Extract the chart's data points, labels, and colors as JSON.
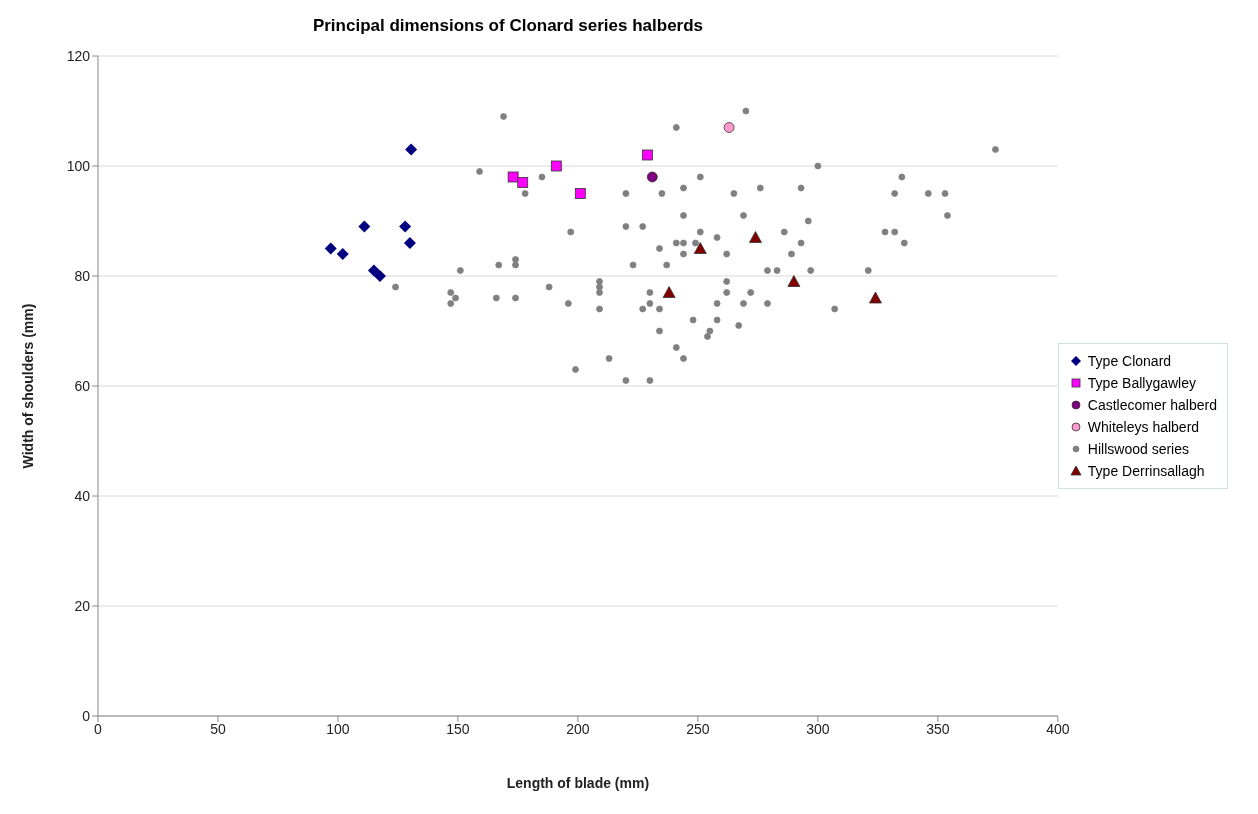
{
  "chart_data": {
    "type": "scatter",
    "title": "Principal dimensions of Clonard series halberds",
    "xlabel": "Length of blade (mm)",
    "ylabel": "Width of shoulders (mm)",
    "xlim": [
      0,
      400
    ],
    "xticks": [
      0,
      50,
      100,
      150,
      200,
      250,
      300,
      350,
      400
    ],
    "ylim": [
      0,
      120
    ],
    "yticks": [
      0,
      20,
      40,
      60,
      80,
      100,
      120
    ],
    "grid": "y",
    "legend": "right",
    "series": [
      {
        "name": "Type Clonard",
        "color": "#000080",
        "marker": "diamond",
        "x": [
          130.5,
          111,
          128,
          130,
          97,
          102,
          115,
          117.5
        ],
        "values": [
          103,
          89,
          89,
          86,
          85,
          84,
          81,
          80
        ]
      },
      {
        "name": "Type Ballygawley",
        "color": "#ff00ff",
        "marker": "square",
        "x": [
          173,
          177,
          191,
          201,
          229
        ],
        "values": [
          98,
          97,
          100,
          95,
          102
        ]
      },
      {
        "name": "Castlecomer halberd",
        "color": "#800080",
        "marker": "circle",
        "x": [
          231
        ],
        "values": [
          98
        ]
      },
      {
        "name": "Whiteleys halberd",
        "color": "#ff99cc",
        "marker": "circle",
        "x": [
          263
        ],
        "values": [
          107
        ]
      },
      {
        "name": "Hillswood series",
        "color": "#808080",
        "marker": "circle",
        "x": [
          169,
          241,
          159,
          185,
          178,
          220,
          235,
          244,
          244,
          197,
          220,
          227,
          234,
          241,
          244,
          244,
          174,
          167,
          174,
          151,
          223,
          237,
          124,
          147,
          149,
          147,
          166,
          174,
          188,
          196,
          209,
          209,
          209,
          209,
          230,
          227,
          230,
          234,
          234,
          241,
          244,
          213,
          199,
          220,
          230,
          270,
          374,
          300,
          251,
          335,
          265,
          276,
          293,
          332,
          346,
          353,
          354,
          269,
          296,
          251,
          286,
          328,
          332,
          258,
          249,
          293,
          336,
          262,
          289,
          279,
          283,
          297,
          321,
          262,
          262,
          272,
          258,
          269,
          279,
          307,
          248,
          258,
          267,
          255,
          254
        ],
        "values": [
          109,
          107,
          99,
          98,
          95,
          95,
          95,
          96,
          91,
          88,
          89,
          89,
          85,
          86,
          86,
          84,
          83,
          82,
          82,
          81,
          82,
          82,
          78,
          77,
          76,
          75,
          76,
          76,
          78,
          75,
          79,
          78,
          77,
          74,
          77,
          74,
          75,
          74,
          70,
          67,
          65,
          65,
          63,
          61,
          61,
          110,
          103,
          100,
          98,
          98,
          95,
          96,
          96,
          95,
          95,
          95,
          91,
          91,
          90,
          88,
          88,
          88,
          88,
          87,
          86,
          86,
          86,
          84,
          84,
          81,
          81,
          81,
          81,
          79,
          77,
          77,
          75,
          75,
          75,
          74,
          72,
          72,
          71,
          70,
          69
        ]
      },
      {
        "name": "Type Derrinsallagh",
        "color": "#800000",
        "marker": "triangle",
        "x": [
          238,
          251,
          274,
          290,
          324
        ],
        "values": [
          77,
          85,
          87,
          79,
          76
        ]
      }
    ]
  }
}
